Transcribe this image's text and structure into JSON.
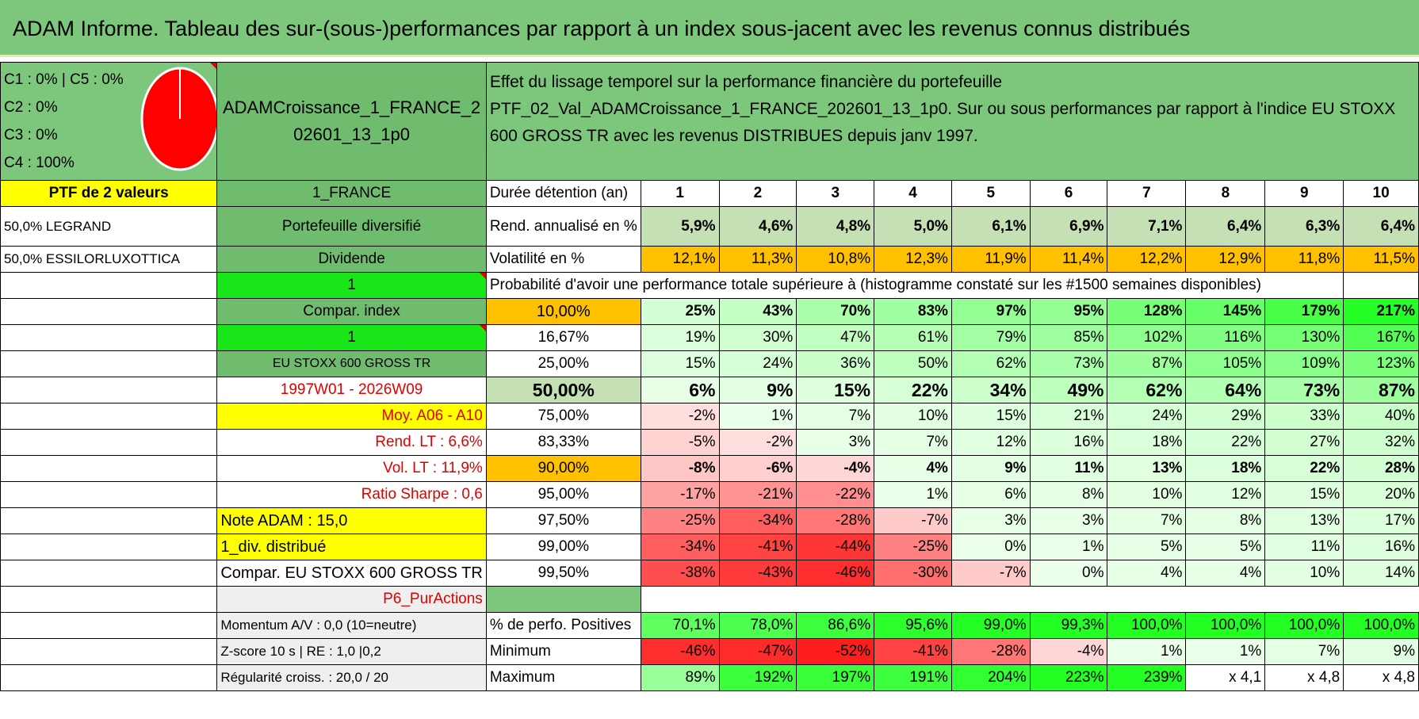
{
  "title": "ADAM Informe. Tableau des sur-(sous-)performances par rapport à un index sous-jacent avec les revenus connus distribués",
  "legend": {
    "line1": "C1 : 0% | C5 : 0%",
    "line2": "C2 : 0%",
    "line3": "C3 : 0%",
    "line4": "C4 : 100%"
  },
  "pie_color": "#ff0000",
  "portfolio_name": "ADAMCroissance_1_FRANCE_202601_13_1p0",
  "header": {
    "line1": "Effet du lissage temporel sur la performance financière du portefeuille",
    "line2": "PTF_02_Val_ADAMCroissance_1_FRANCE_202601_13_1p0. Sur ou sous performances par rapport à l'indice EU STOXX 600 GROSS TR avec les revenus DISTRIBUES depuis janv 1997."
  },
  "left": {
    "ptf_count": "PTF de 2 valeurs",
    "holding1": "50,0% LEGRAND",
    "holding2": "50,0% ESSILORLUXOTTICA"
  },
  "mid": {
    "market": "1_FRANCE",
    "diversified": "Portefeuille diversifié",
    "dividende": "Dividende",
    "one_a": "1",
    "compar_index": "Compar. index",
    "one_b": "1",
    "index_name": "EU STOXX 600 GROSS TR",
    "period": "1997W01 - 2026W09",
    "moy": "Moy. A06 - A10",
    "rend_lt": "Rend. LT : 6,6%",
    "vol_lt": "Vol. LT : 11,9%",
    "sharpe": "Ratio Sharpe : 0,6",
    "note": "Note ADAM : 15,0",
    "div": "1_div. distribué",
    "compar": "Compar. EU STOXX 600 GROSS TR",
    "p6": "P6_PurActions",
    "momentum": "Momentum A/V : 0,0 (10=neutre)",
    "zscore": "Z-score 10 s | RE : 1,0 |0,2",
    "regularite": "Régularité croiss. : 20,0 / 20"
  },
  "labels": {
    "duree": "Durée détention (an)",
    "rend": "Rend. annualisé en %",
    "vol": "Volatilité en %",
    "prob": "Probabilité d'avoir une performance totale supérieure à (histogramme constaté sur les #1500 semaines disponibles)",
    "pos": "% de perfo. Positives",
    "min": "Minimum",
    "max": "Maximum"
  },
  "years": [
    "1",
    "2",
    "3",
    "4",
    "5",
    "6",
    "7",
    "8",
    "9",
    "10"
  ],
  "rend": [
    "5,9%",
    "4,6%",
    "4,8%",
    "5,0%",
    "6,1%",
    "6,9%",
    "7,1%",
    "6,4%",
    "6,3%",
    "6,4%"
  ],
  "vol": [
    "12,1%",
    "11,3%",
    "10,8%",
    "12,3%",
    "11,9%",
    "11,4%",
    "12,2%",
    "12,9%",
    "11,8%",
    "11,5%"
  ],
  "quantiles": [
    {
      "p": "10,00%",
      "values": [
        "25%",
        "43%",
        "70%",
        "83%",
        "97%",
        "95%",
        "128%",
        "145%",
        "179%",
        "217%"
      ]
    },
    {
      "p": "16,67%",
      "values": [
        "19%",
        "30%",
        "47%",
        "61%",
        "79%",
        "85%",
        "102%",
        "116%",
        "130%",
        "167%"
      ]
    },
    {
      "p": "25,00%",
      "values": [
        "15%",
        "24%",
        "36%",
        "50%",
        "62%",
        "73%",
        "87%",
        "105%",
        "109%",
        "123%"
      ]
    },
    {
      "p": "50,00%",
      "values": [
        "6%",
        "9%",
        "15%",
        "22%",
        "34%",
        "49%",
        "62%",
        "64%",
        "73%",
        "87%"
      ]
    },
    {
      "p": "75,00%",
      "values": [
        "-2%",
        "1%",
        "7%",
        "10%",
        "15%",
        "21%",
        "24%",
        "29%",
        "33%",
        "40%"
      ]
    },
    {
      "p": "83,33%",
      "values": [
        "-5%",
        "-2%",
        "3%",
        "7%",
        "12%",
        "16%",
        "18%",
        "22%",
        "27%",
        "32%"
      ]
    },
    {
      "p": "90,00%",
      "values": [
        "-8%",
        "-6%",
        "-4%",
        "4%",
        "9%",
        "11%",
        "13%",
        "18%",
        "22%",
        "28%"
      ]
    },
    {
      "p": "95,00%",
      "values": [
        "-17%",
        "-21%",
        "-22%",
        "1%",
        "6%",
        "8%",
        "10%",
        "12%",
        "15%",
        "20%"
      ]
    },
    {
      "p": "97,50%",
      "values": [
        "-25%",
        "-34%",
        "-28%",
        "-7%",
        "3%",
        "3%",
        "7%",
        "8%",
        "13%",
        "17%"
      ]
    },
    {
      "p": "99,00%",
      "values": [
        "-34%",
        "-41%",
        "-44%",
        "-25%",
        "0%",
        "1%",
        "5%",
        "5%",
        "11%",
        "16%"
      ]
    },
    {
      "p": "99,50%",
      "values": [
        "-38%",
        "-43%",
        "-46%",
        "-30%",
        "-7%",
        "0%",
        "4%",
        "4%",
        "10%",
        "14%"
      ]
    }
  ],
  "pos": [
    "70,1%",
    "78,0%",
    "86,6%",
    "95,6%",
    "99,0%",
    "99,3%",
    "100,0%",
    "100,0%",
    "100,0%",
    "100,0%"
  ],
  "min": [
    "-46%",
    "-47%",
    "-52%",
    "-41%",
    "-28%",
    "-4%",
    "1%",
    "1%",
    "7%",
    "9%"
  ],
  "max": [
    "89%",
    "192%",
    "197%",
    "191%",
    "204%",
    "223%",
    "239%",
    "x 4,1",
    "x 4,8",
    "x 4,8"
  ],
  "colors": {
    "green_dark": "#6fbc6f",
    "green_bright": "#19e619",
    "yellow": "#ffff00",
    "orange": "#ffc000",
    "red_text": "#e00000"
  }
}
